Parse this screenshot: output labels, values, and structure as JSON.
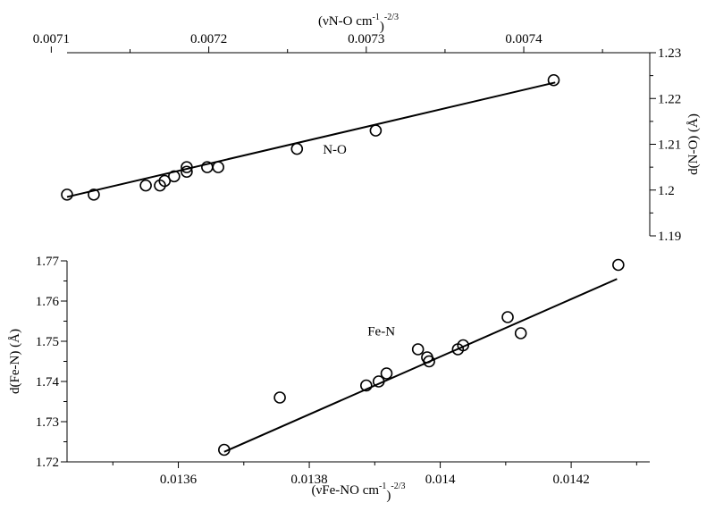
{
  "chart_data": [
    {
      "type": "scatter",
      "id": "top",
      "title": "",
      "xlabel": "(νN-O cm",
      "xlabel_sup": "-1",
      "xlabel_mid": ")",
      "xlabel_sup2": "-2/3",
      "ylabel": "d(N-O) (Å)",
      "xlim": [
        0.00711,
        0.00748
      ],
      "ylim": [
        1.19,
        1.23
      ],
      "xticks": [
        0.0071,
        0.0072,
        0.0073,
        0.0074
      ],
      "xtick_labels": [
        "0.0071",
        "0.0072",
        "0.0073",
        "0.0074"
      ],
      "yticks": [
        1.19,
        1.2,
        1.21,
        1.22,
        1.23
      ],
      "ytick_labels": [
        "1.19",
        "1.2",
        "1.21",
        "1.22",
        "1.23"
      ],
      "x_axis_position": "top",
      "y_axis_position": "right",
      "grid": false,
      "annotation": "N-O",
      "annotation_at": [
        0.00728,
        1.208
      ],
      "fit_line": {
        "x": [
          0.00711,
          0.00742
        ],
        "y": [
          1.1985,
          1.2235
        ]
      },
      "points": {
        "x": [
          0.00711,
          0.007127,
          0.00716,
          0.007169,
          0.007172,
          0.007178,
          0.007186,
          0.007186,
          0.007199,
          0.007206,
          0.007256,
          0.007306,
          0.007419
        ],
        "y": [
          1.199,
          1.199,
          1.201,
          1.201,
          1.202,
          1.203,
          1.204,
          1.205,
          1.205,
          1.205,
          1.209,
          1.213,
          1.224
        ]
      }
    },
    {
      "type": "scatter",
      "id": "bottom",
      "title": "",
      "xlabel": "(νFe-NO cm",
      "xlabel_sup": "-1",
      "xlabel_mid": ")",
      "xlabel_sup2": "-2/3",
      "ylabel": "d(Fe-N) (Å)",
      "xlim": [
        0.01343,
        0.01432
      ],
      "ylim": [
        1.72,
        1.77
      ],
      "xticks": [
        0.0136,
        0.0138,
        0.014,
        0.0142
      ],
      "xtick_labels": [
        "0.0136",
        "0.0138",
        "0.014",
        "0.0142"
      ],
      "yticks": [
        1.72,
        1.73,
        1.74,
        1.75,
        1.76,
        1.77
      ],
      "ytick_labels": [
        "1.72",
        "1.73",
        "1.74",
        "1.75",
        "1.76",
        "1.77"
      ],
      "x_axis_position": "bottom",
      "y_axis_position": "left",
      "grid": false,
      "annotation": "Fe-N",
      "annotation_at": [
        0.01391,
        1.7515
      ],
      "fit_line": {
        "x": [
          0.01367,
          0.01427
        ],
        "y": [
          1.7225,
          1.7655
        ]
      },
      "points": {
        "x": [
          0.01367,
          0.013755,
          0.013887,
          0.013906,
          0.013918,
          0.013966,
          0.01398,
          0.013983,
          0.014027,
          0.014035,
          0.014103,
          0.014123,
          0.014272
        ],
        "y": [
          1.723,
          1.736,
          1.739,
          1.74,
          1.742,
          1.748,
          1.746,
          1.745,
          1.748,
          1.749,
          1.756,
          1.752,
          1.769
        ]
      }
    }
  ]
}
